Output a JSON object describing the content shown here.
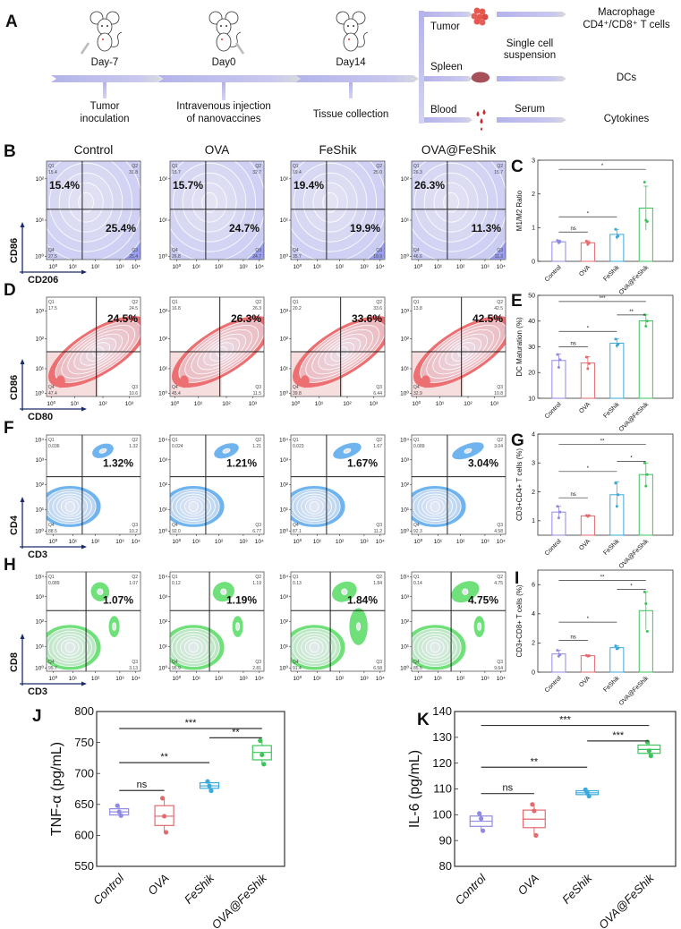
{
  "panel_letters": {
    "A": "A",
    "B": "B",
    "C": "C",
    "D": "D",
    "E": "E",
    "F": "F",
    "G": "G",
    "H": "H",
    "I": "I",
    "J": "J",
    "K": "K"
  },
  "schematic": {
    "timeline": [
      {
        "day": "Day-7",
        "event_lines": [
          "Tumor",
          "inoculation"
        ]
      },
      {
        "day": "Day0",
        "event_lines": [
          "Intravenous injection",
          "of nanovaccines"
        ]
      },
      {
        "day": "Day14",
        "event_lines": [
          "Tissue collection"
        ]
      }
    ],
    "tissues": [
      {
        "name": "Tumor",
        "icon": "tumor-cluster-icon"
      },
      {
        "name": "Spleen",
        "icon": "spleen-icon"
      },
      {
        "name": "Blood",
        "icon": "blood-drops-icon"
      }
    ],
    "processing": {
      "cells_lines": [
        "Single cell",
        "suspension"
      ],
      "serum": "Serum"
    },
    "readouts": {
      "tumor_lines": [
        "Macrophage",
        "CD4⁺/CD8⁺ T cells"
      ],
      "spleen": "DCs",
      "blood": "Cytokines"
    },
    "colors": {
      "timeline": "#b4b3ea",
      "tumor": "#e8574f",
      "spleen": "#a8505a",
      "blood": "#c9242c"
    }
  },
  "groups": [
    "Control",
    "OVA",
    "FeShik",
    "OVA@FeShik"
  ],
  "group_colors": [
    "#8f8ae3",
    "#e36a6e",
    "#3aa9dc",
    "#3cc45a"
  ],
  "flow_panels": [
    {
      "letter": "B",
      "x_marker": "CD206",
      "y_marker": "CD86",
      "color": "#9a9ef0",
      "x_ticks": [
        "10⁰",
        "10¹",
        "10²",
        "10³",
        "10⁴"
      ],
      "y_ticks": [
        "10⁰",
        "10¹",
        "10²"
      ],
      "highlight": [
        "Q1",
        "Q3"
      ],
      "samples": [
        {
          "Q1": "15.4",
          "Q2": "31.8",
          "Q3": "25.4",
          "Q4": "27.5",
          "highlight_text": [
            "15.4%",
            "25.4%"
          ]
        },
        {
          "Q1": "15.7",
          "Q2": "32.7",
          "Q3": "24.7",
          "Q4": "26.8",
          "highlight_text": [
            "15.7%",
            "24.7%"
          ]
        },
        {
          "Q1": "19.4",
          "Q2": "25.0",
          "Q3": "19.9",
          "Q4": "35.7",
          "highlight_text": [
            "19.4%",
            "19.9%"
          ]
        },
        {
          "Q1": "26.3",
          "Q2": "15.7",
          "Q3": "11.3",
          "Q4": "46.6",
          "highlight_text": [
            "26.3%",
            "11.3%"
          ]
        }
      ]
    },
    {
      "letter": "D",
      "x_marker": "CD80",
      "y_marker": "CD86",
      "color": "#ec6f72",
      "x_ticks": [
        "10⁰",
        "10¹",
        "10²",
        "10³"
      ],
      "y_ticks": [
        "10⁰",
        "10¹",
        "10²",
        "10³"
      ],
      "highlight": [
        "Q2"
      ],
      "samples": [
        {
          "Q1": "17.5",
          "Q2": "24.5",
          "Q3": "10.6",
          "Q4": "47.4",
          "highlight_text": [
            "24.5%"
          ]
        },
        {
          "Q1": "16.8",
          "Q2": "26.3",
          "Q3": "11.5",
          "Q4": "45.4",
          "highlight_text": [
            "26.3%"
          ]
        },
        {
          "Q1": "20.2",
          "Q2": "33.6",
          "Q3": "6.44",
          "Q4": "39.8",
          "highlight_text": [
            "33.6%"
          ]
        },
        {
          "Q1": "13.8",
          "Q2": "42.5",
          "Q3": "10.8",
          "Q4": "32.9",
          "highlight_text": [
            "42.5%"
          ]
        }
      ]
    },
    {
      "letter": "F",
      "x_marker": "CD3",
      "y_marker": "CD4",
      "color": "#6fb4ef",
      "x_ticks": [
        "10⁰",
        "10¹",
        "10²",
        "10³",
        "10⁴"
      ],
      "y_ticks": [
        "10⁰",
        "10¹",
        "10²",
        "10³",
        "10⁴"
      ],
      "highlight": [
        "Q2"
      ],
      "samples": [
        {
          "Q1": "0.036",
          "Q2": "1.32",
          "Q3": "10.2",
          "Q4": "88.5",
          "highlight_text": [
            "1.32%"
          ]
        },
        {
          "Q1": "0.024",
          "Q2": "1.21",
          "Q3": "6.77",
          "Q4": "92.0",
          "highlight_text": [
            "1.21%"
          ]
        },
        {
          "Q1": "0.023",
          "Q2": "1.67",
          "Q3": "11.2",
          "Q4": "87.1",
          "highlight_text": [
            "1.67%"
          ]
        },
        {
          "Q1": "0.089",
          "Q2": "3.04",
          "Q3": "4.58",
          "Q4": "92.3",
          "highlight_text": [
            "3.04%"
          ]
        }
      ]
    },
    {
      "letter": "H",
      "x_marker": "CD3",
      "y_marker": "CD8",
      "color": "#6fe07a",
      "x_ticks": [
        "10⁰",
        "10¹",
        "10²",
        "10³",
        "10⁴"
      ],
      "y_ticks": [
        "10⁰",
        "10¹",
        "10²",
        "10³",
        "10⁴"
      ],
      "highlight": [
        "Q2"
      ],
      "samples": [
        {
          "Q1": "0.089",
          "Q2": "1.07",
          "Q3": "3.13",
          "Q4": "95.7",
          "highlight_text": [
            "1.07%"
          ]
        },
        {
          "Q1": "0.12",
          "Q2": "1.19",
          "Q3": "2.81",
          "Q4": "95.9",
          "highlight_text": [
            "1.19%"
          ]
        },
        {
          "Q1": "0.13",
          "Q2": "1.84",
          "Q3": "6.58",
          "Q4": "91.4",
          "highlight_text": [
            "1.84%"
          ]
        },
        {
          "Q1": "0.14",
          "Q2": "4.75",
          "Q3": "9.64",
          "Q4": "85.5",
          "highlight_text": [
            "4.75%"
          ]
        }
      ]
    }
  ],
  "chart_data": [
    {
      "panel": "C",
      "type": "bar",
      "categories": [
        "Control",
        "OVA",
        "FeShik",
        "OVA@FeShik"
      ],
      "ylabel": "M1/M2 Ratio",
      "ylim": [
        0,
        3
      ],
      "yticks": [
        0,
        1,
        2,
        3
      ],
      "values": [
        0.58,
        0.55,
        0.8,
        1.58
      ],
      "errors": [
        0.05,
        0.06,
        0.15,
        0.65
      ],
      "points": [
        [
          0.62,
          0.55,
          0.58
        ],
        [
          0.6,
          0.5,
          0.55
        ],
        [
          0.95,
          0.72,
          0.75
        ],
        [
          2.35,
          1.22,
          1.18
        ]
      ],
      "significance": [
        {
          "pair": [
            0,
            1
          ],
          "label": "ns"
        },
        {
          "pair": [
            0,
            2
          ],
          "label": "*"
        },
        {
          "pair": [
            0,
            3
          ],
          "label": "*"
        }
      ]
    },
    {
      "panel": "E",
      "type": "bar",
      "categories": [
        "Control",
        "OVA",
        "FeShik",
        "OVA@FeShik"
      ],
      "ylabel": "DC Maturation (%)",
      "ylim": [
        10,
        50
      ],
      "yticks": [
        10,
        20,
        30,
        40,
        50
      ],
      "values": [
        24.7,
        23.7,
        31.4,
        40.1
      ],
      "errors": [
        2.5,
        2.5,
        1.8,
        2.3
      ],
      "points": [
        [
          27,
          22,
          25
        ],
        [
          26,
          21.5,
          23.5
        ],
        [
          33,
          30.5,
          31
        ],
        [
          42.5,
          38,
          40
        ]
      ],
      "significance": [
        {
          "pair": [
            0,
            1
          ],
          "label": "ns"
        },
        {
          "pair": [
            0,
            2
          ],
          "label": "*"
        },
        {
          "pair": [
            2,
            3
          ],
          "label": "**"
        },
        {
          "pair": [
            0,
            3
          ],
          "label": "***"
        }
      ]
    },
    {
      "panel": "G",
      "type": "bar",
      "categories": [
        "Control",
        "OVA",
        "FeShik",
        "OVA@FeShik"
      ],
      "ylabel": "CD3+CD4+ T cells (%)",
      "ylim": [
        0.5,
        4
      ],
      "yticks": [
        1,
        2,
        3,
        4
      ],
      "values": [
        1.3,
        1.17,
        1.9,
        2.6
      ],
      "errors": [
        0.2,
        0.03,
        0.45,
        0.4
      ],
      "points": [
        [
          1.5,
          1.1,
          1.3
        ],
        [
          1.18,
          1.15,
          1.18
        ],
        [
          2.3,
          1.5,
          1.9
        ],
        [
          3.0,
          2.2,
          2.6
        ]
      ],
      "significance": [
        {
          "pair": [
            0,
            1
          ],
          "label": "ns"
        },
        {
          "pair": [
            0,
            2
          ],
          "label": "*"
        },
        {
          "pair": [
            2,
            3
          ],
          "label": "*"
        },
        {
          "pair": [
            0,
            3
          ],
          "label": "**"
        }
      ]
    },
    {
      "panel": "I",
      "type": "bar",
      "categories": [
        "Control",
        "OVA",
        "FeShik",
        "OVA@FeShik"
      ],
      "ylabel": "CD3+CD8+ T cells (%)",
      "ylim": [
        0,
        7
      ],
      "yticks": [
        0,
        2,
        4,
        6
      ],
      "values": [
        1.25,
        1.13,
        1.68,
        4.22
      ],
      "errors": [
        0.25,
        0.05,
        0.12,
        1.3
      ],
      "points": [
        [
          1.5,
          1.1,
          1.2
        ],
        [
          1.15,
          1.1,
          1.12
        ],
        [
          1.8,
          1.6,
          1.65
        ],
        [
          5.5,
          4.7,
          2.8
        ]
      ],
      "significance": [
        {
          "pair": [
            0,
            1
          ],
          "label": "ns"
        },
        {
          "pair": [
            0,
            2
          ],
          "label": "*"
        },
        {
          "pair": [
            2,
            3
          ],
          "label": "*"
        },
        {
          "pair": [
            0,
            3
          ],
          "label": "**"
        }
      ]
    },
    {
      "panel": "J",
      "type": "box",
      "categories": [
        "Control",
        "OVA",
        "FeShik",
        "OVA@FeShik"
      ],
      "ylabel": "TNF-α (pg/mL)",
      "ylim": [
        550,
        800
      ],
      "yticks": [
        550,
        600,
        650,
        700,
        750,
        800
      ],
      "boxes": [
        {
          "q1": 633,
          "median": 638,
          "q3": 643
        },
        {
          "q1": 616,
          "median": 631,
          "q3": 648
        },
        {
          "q1": 676,
          "median": 680,
          "q3": 685
        },
        {
          "q1": 722,
          "median": 734,
          "q3": 745
        }
      ],
      "points": [
        [
          648,
          638,
          632
        ],
        [
          660,
          631,
          605
        ],
        [
          687,
          680,
          672
        ],
        [
          753,
          730,
          715
        ]
      ],
      "significance": [
        {
          "pair": [
            0,
            1
          ],
          "label": "ns"
        },
        {
          "pair": [
            0,
            2
          ],
          "label": "**"
        },
        {
          "pair": [
            2,
            3
          ],
          "label": "**"
        },
        {
          "pair": [
            0,
            3
          ],
          "label": "***"
        }
      ]
    },
    {
      "panel": "K",
      "type": "box",
      "categories": [
        "Control",
        "OVA",
        "FeShik",
        "OVA@FeShik"
      ],
      "ylabel": "IL-6 (pg/mL)",
      "ylim": [
        80,
        140
      ],
      "yticks": [
        80,
        90,
        100,
        110,
        120,
        130,
        140
      ],
      "boxes": [
        {
          "q1": 95.5,
          "median": 97.5,
          "q3": 99.5
        },
        {
          "q1": 95,
          "median": 98.3,
          "q3": 101.8
        },
        {
          "q1": 107.8,
          "median": 108.5,
          "q3": 109.3
        },
        {
          "q1": 123.8,
          "median": 125.3,
          "q3": 127
        }
      ],
      "points": [
        [
          100.5,
          98.5,
          93.8
        ],
        [
          104,
          101.5,
          92
        ],
        [
          109.7,
          108.6,
          107.2
        ],
        [
          128.2,
          124.8,
          122.8
        ]
      ],
      "significance": [
        {
          "pair": [
            0,
            1
          ],
          "label": "ns"
        },
        {
          "pair": [
            0,
            2
          ],
          "label": "**"
        },
        {
          "pair": [
            2,
            3
          ],
          "label": "***"
        },
        {
          "pair": [
            0,
            3
          ],
          "label": "***"
        }
      ]
    }
  ]
}
